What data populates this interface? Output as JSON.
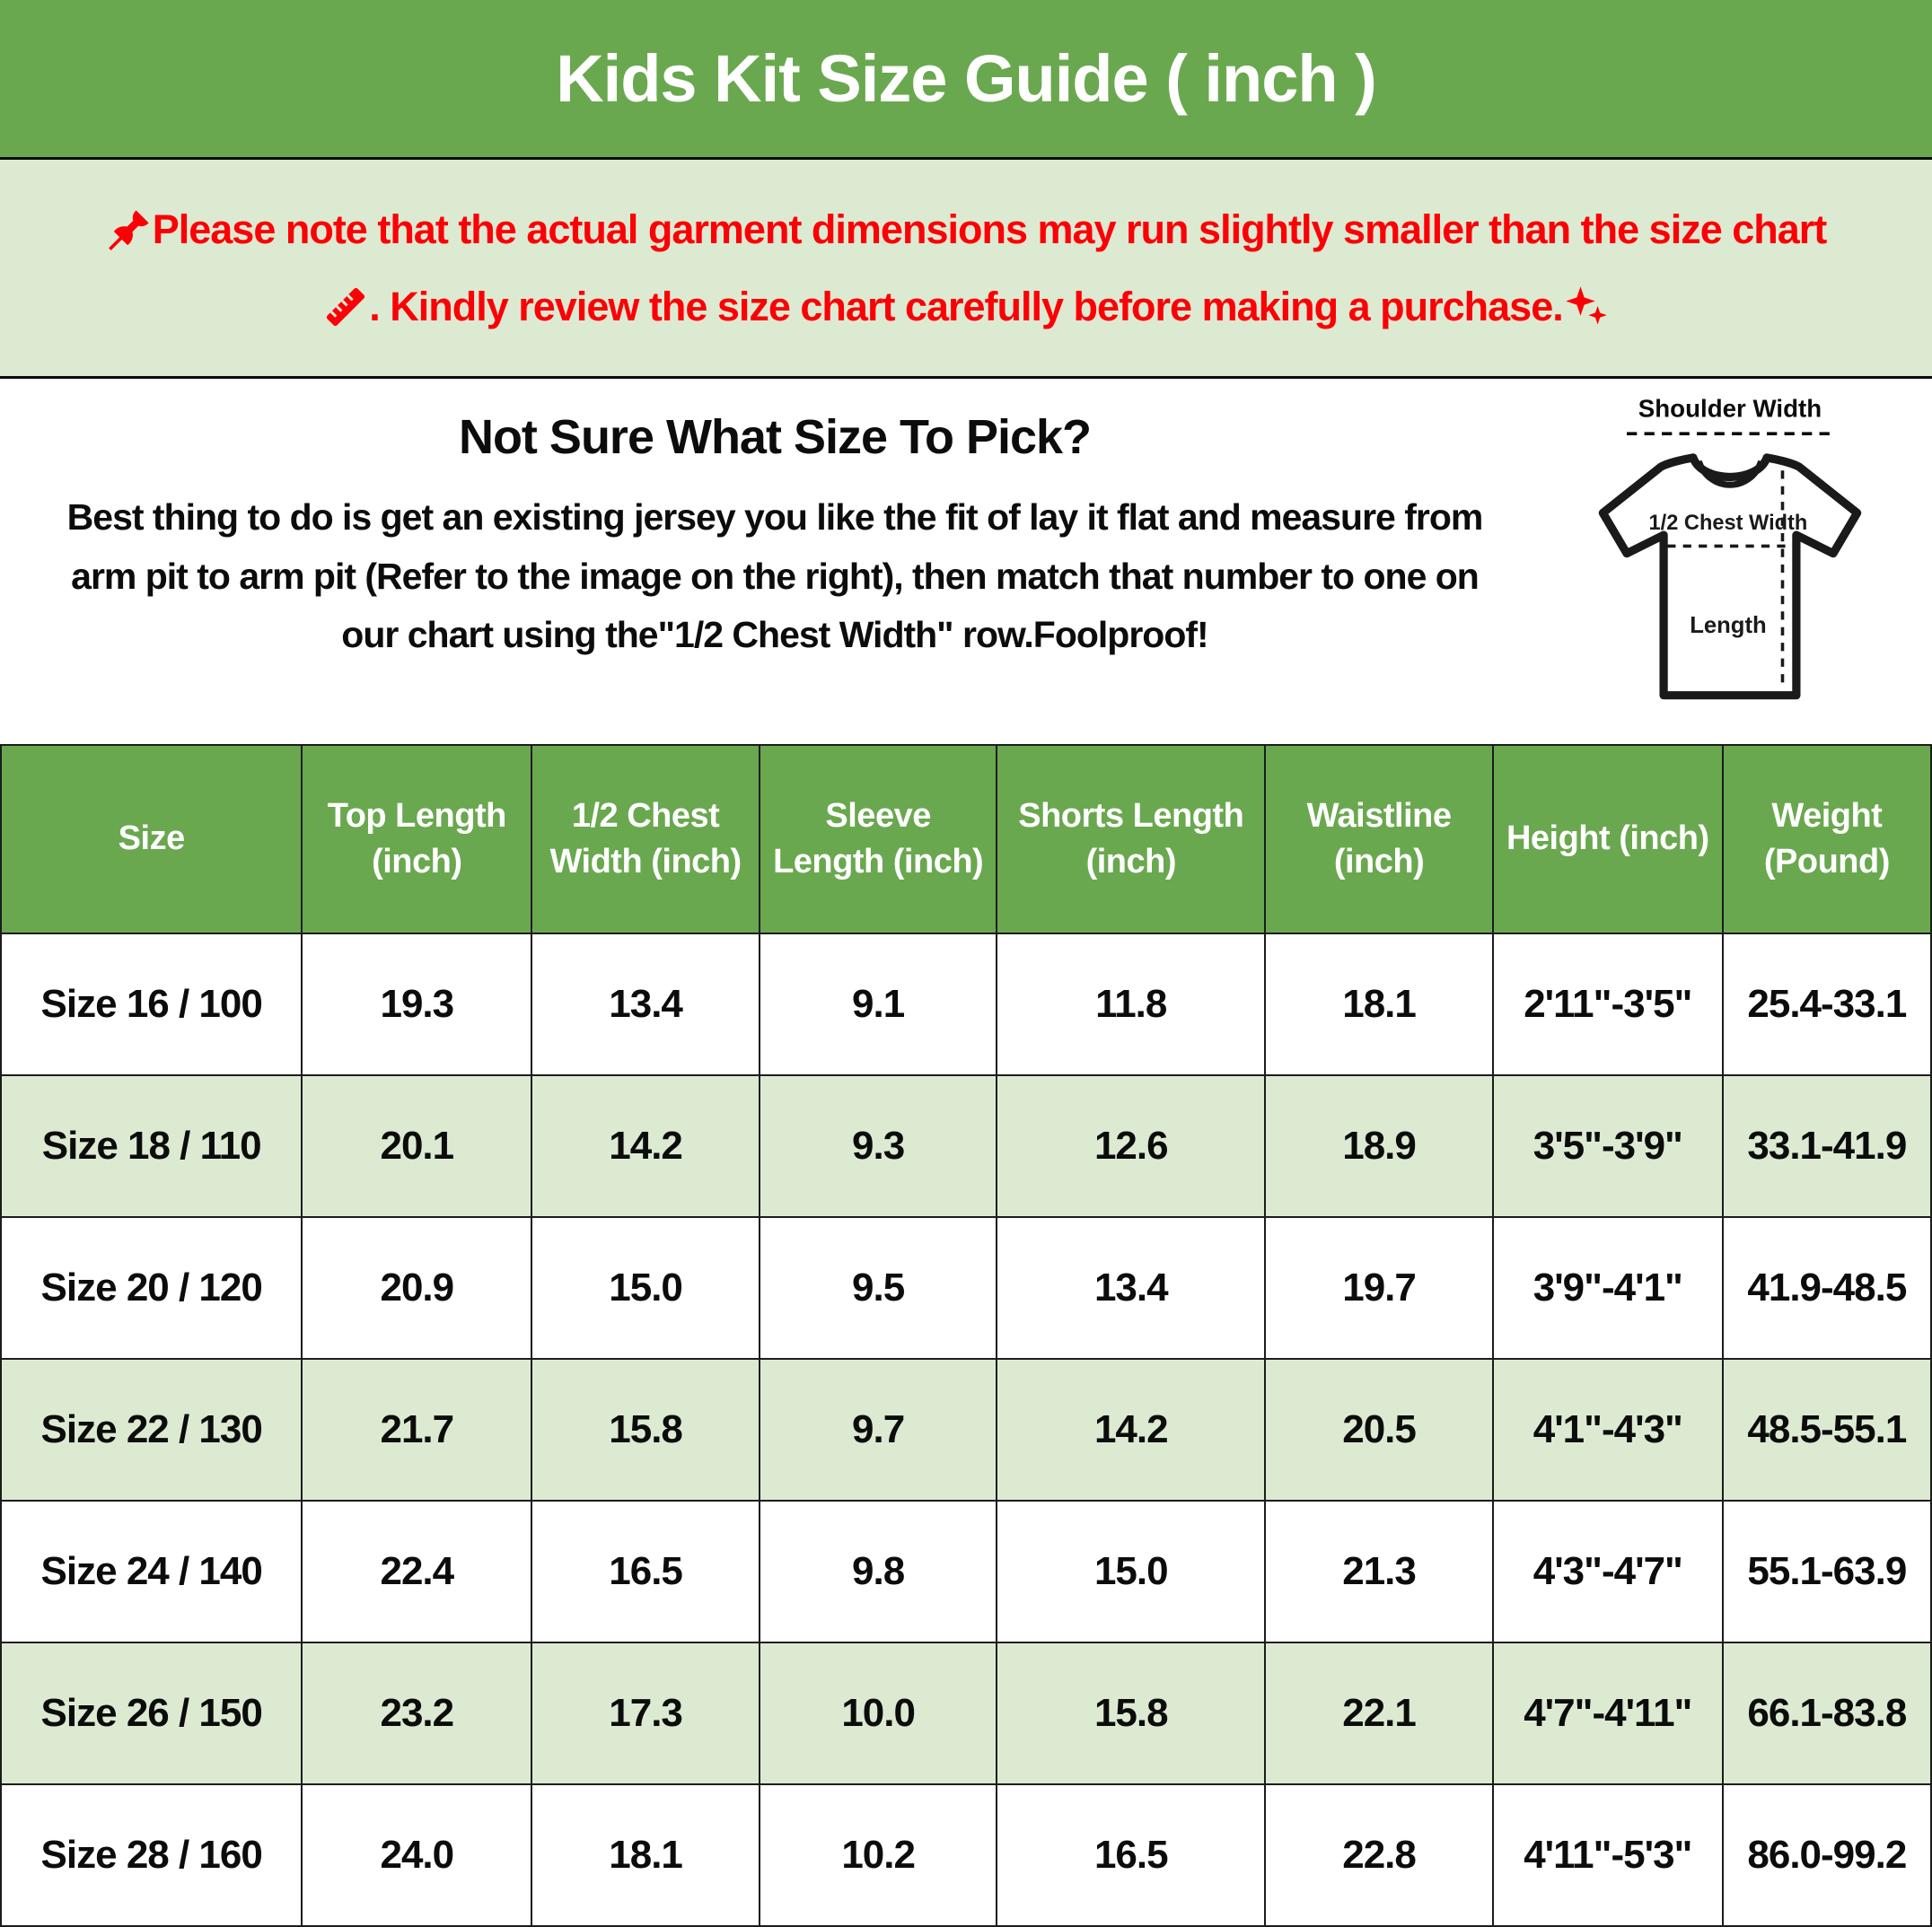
{
  "title": "Kids Kit Size Guide ( inch )",
  "note": {
    "line1": "Please note that the actual garment dimensions may run slightly smaller than the size chart",
    "line2": ". Kindly review the size chart carefully before making a purchase.",
    "icons": {
      "line1_start": "pushpin",
      "line2_start": "ruler",
      "line2_end": "sparkles"
    }
  },
  "guide": {
    "heading": "Not Sure What Size To Pick?",
    "body": "Best thing to do is get an existing jersey you like the fit of lay it flat and measure from arm pit to arm pit (Refer to the image on the right), then match that number to one on our chart using the\"1/2 Chest Width\" row.Foolproof!"
  },
  "diagram": {
    "shoulder_label": "Shoulder Width",
    "chest_label": "1/2 Chest Width",
    "length_label": "Length"
  },
  "colors": {
    "header_green": "#6aa84f",
    "band_green": "#dcead2",
    "accent_red": "#fb0006",
    "text_black": "#0c0c0c"
  },
  "chart_data": {
    "type": "table",
    "columns": [
      "Size",
      "Top Length (inch)",
      "1/2 Chest Width (inch)",
      "Sleeve Length (inch)",
      "Shorts Length (inch)",
      "Waistline (inch)",
      "Height (inch)",
      "Weight (Pound)"
    ],
    "rows": [
      [
        "Size 16 / 100",
        "19.3",
        "13.4",
        "9.1",
        "11.8",
        "18.1",
        "2'11\"-3'5\"",
        "25.4-33.1"
      ],
      [
        "Size 18 / 110",
        "20.1",
        "14.2",
        "9.3",
        "12.6",
        "18.9",
        "3'5\"-3'9\"",
        "33.1-41.9"
      ],
      [
        "Size 20 / 120",
        "20.9",
        "15.0",
        "9.5",
        "13.4",
        "19.7",
        "3'9\"-4'1\"",
        "41.9-48.5"
      ],
      [
        "Size 22 / 130",
        "21.7",
        "15.8",
        "9.7",
        "14.2",
        "20.5",
        "4'1\"-4'3\"",
        "48.5-55.1"
      ],
      [
        "Size 24 / 140",
        "22.4",
        "16.5",
        "9.8",
        "15.0",
        "21.3",
        "4'3\"-4'7\"",
        "55.1-63.9"
      ],
      [
        "Size 26 / 150",
        "23.2",
        "17.3",
        "10.0",
        "15.8",
        "22.1",
        "4'7\"-4'11\"",
        "66.1-83.8"
      ],
      [
        "Size 28 / 160",
        "24.0",
        "18.1",
        "10.2",
        "16.5",
        "22.8",
        "4'11\"-5'3\"",
        "86.0-99.2"
      ]
    ]
  }
}
